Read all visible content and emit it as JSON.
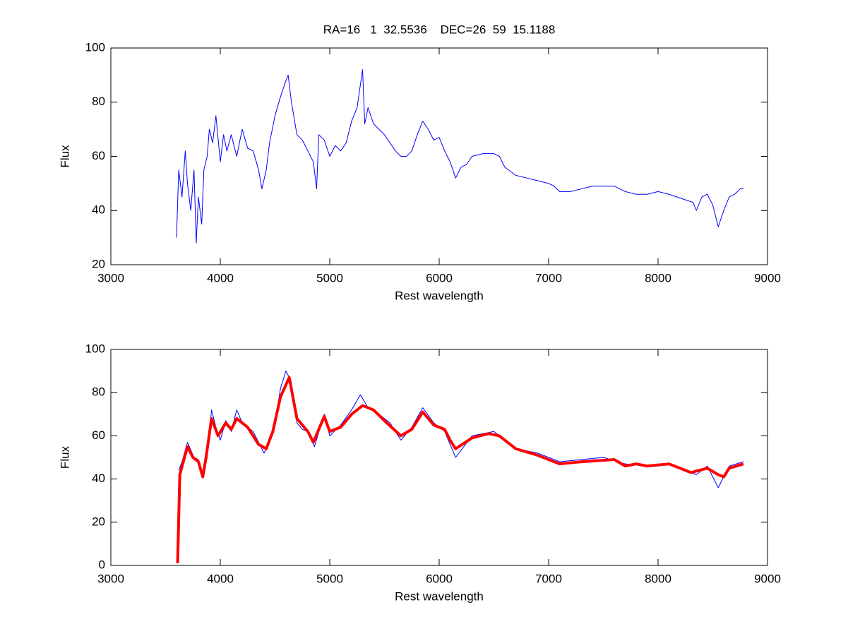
{
  "chart_data": [
    {
      "type": "line",
      "title": "RA=16   1  32.5536    DEC=26  59  15.1188",
      "x_label": "Rest wavelength",
      "y_label": "Flux",
      "xlim": [
        3000,
        9000
      ],
      "xticks": [
        3000,
        4000,
        5000,
        6000,
        7000,
        8000,
        9000
      ],
      "ylim": [
        20,
        100
      ],
      "yticks": [
        20,
        40,
        60,
        80,
        100
      ],
      "series": [
        {
          "color": "#0000ff",
          "width": 1,
          "x": [
            3600,
            3620,
            3650,
            3680,
            3700,
            3730,
            3760,
            3780,
            3800,
            3830,
            3850,
            3880,
            3900,
            3930,
            3960,
            4000,
            4030,
            4060,
            4100,
            4150,
            4200,
            4250,
            4300,
            4350,
            4380,
            4420,
            4450,
            4500,
            4550,
            4600,
            4620,
            4650,
            4700,
            4750,
            4800,
            4850,
            4880,
            4900,
            4950,
            5000,
            5050,
            5100,
            5150,
            5200,
            5250,
            5300,
            5320,
            5350,
            5400,
            5450,
            5500,
            5550,
            5600,
            5650,
            5700,
            5750,
            5800,
            5850,
            5900,
            5950,
            6000,
            6050,
            6100,
            6150,
            6200,
            6250,
            6300,
            6400,
            6500,
            6550,
            6600,
            6700,
            6800,
            6900,
            7000,
            7050,
            7100,
            7200,
            7300,
            7400,
            7500,
            7600,
            7700,
            7800,
            7900,
            8000,
            8100,
            8320,
            8350,
            8400,
            8450,
            8500,
            8550,
            8600,
            8650,
            8700,
            8750,
            8780
          ],
          "values": [
            30,
            55,
            45,
            62,
            50,
            40,
            55,
            28,
            45,
            35,
            55,
            60,
            70,
            65,
            75,
            58,
            68,
            62,
            68,
            60,
            70,
            63,
            62,
            55,
            48,
            55,
            65,
            75,
            82,
            88,
            90,
            80,
            68,
            66,
            62,
            58,
            48,
            68,
            66,
            60,
            64,
            62,
            65,
            73,
            78,
            92,
            72,
            78,
            72,
            70,
            68,
            65,
            62,
            60,
            60,
            62,
            68,
            73,
            70,
            66,
            67,
            62,
            58,
            52,
            56,
            57,
            60,
            61,
            61,
            60,
            56,
            53,
            52,
            51,
            50,
            49,
            47,
            47,
            48,
            49,
            49,
            49,
            47,
            46,
            46,
            47,
            46,
            43,
            40,
            45,
            46,
            42,
            34,
            40,
            45,
            46,
            48,
            48
          ]
        }
      ]
    },
    {
      "type": "line",
      "x_label": "Rest wavelength",
      "y_label": "Flux",
      "xlim": [
        3000,
        9000
      ],
      "xticks": [
        3000,
        4000,
        5000,
        6000,
        7000,
        8000,
        9000
      ],
      "ylim": [
        0,
        100
      ],
      "yticks": [
        0,
        20,
        40,
        60,
        80,
        100
      ],
      "series": [
        {
          "color": "#0000ff",
          "width": 1,
          "x": [
            3620,
            3650,
            3700,
            3760,
            3800,
            3840,
            3880,
            3920,
            3960,
            4000,
            4050,
            4100,
            4150,
            4200,
            4300,
            4400,
            4450,
            4500,
            4550,
            4600,
            4640,
            4700,
            4750,
            4800,
            4860,
            4950,
            5000,
            5100,
            5200,
            5280,
            5350,
            5450,
            5550,
            5650,
            5750,
            5850,
            5950,
            6050,
            6150,
            6300,
            6500,
            6700,
            6900,
            7100,
            7300,
            7500,
            7700,
            7900,
            8100,
            8350,
            8450,
            8550,
            8650,
            8780
          ],
          "values": [
            44,
            48,
            57,
            50,
            49,
            42,
            50,
            72,
            64,
            58,
            67,
            62,
            72,
            66,
            62,
            52,
            58,
            66,
            82,
            90,
            86,
            66,
            63,
            62,
            55,
            70,
            60,
            65,
            72,
            79,
            73,
            70,
            66,
            58,
            64,
            73,
            66,
            62,
            50,
            60,
            62,
            54,
            52,
            48,
            49,
            50,
            47,
            46,
            47,
            42,
            46,
            36,
            46,
            48
          ]
        },
        {
          "color": "#ff0000",
          "width": 4,
          "x": [
            3610,
            3630,
            3700,
            3750,
            3800,
            3840,
            3870,
            3920,
            3980,
            4050,
            4100,
            4150,
            4250,
            4350,
            4420,
            4480,
            4550,
            4630,
            4700,
            4800,
            4850,
            4950,
            5000,
            5100,
            5200,
            5300,
            5400,
            5500,
            5650,
            5750,
            5850,
            5950,
            6050,
            6100,
            6150,
            6300,
            6450,
            6550,
            6700,
            6900,
            7100,
            7300,
            7600,
            7700,
            7800,
            7900,
            8100,
            8300,
            8450,
            8550,
            8600,
            8650,
            8780
          ],
          "values": [
            1,
            42,
            55,
            50,
            48,
            41,
            50,
            68,
            60,
            66,
            63,
            68,
            64,
            56,
            54,
            62,
            78,
            87,
            68,
            62,
            57,
            69,
            62,
            64,
            70,
            74,
            72,
            67,
            60,
            63,
            71,
            65,
            63,
            58,
            54,
            59,
            61,
            60,
            54,
            51,
            47,
            48,
            49,
            46,
            47,
            46,
            47,
            43,
            45,
            42,
            41,
            45,
            47
          ]
        }
      ]
    }
  ]
}
